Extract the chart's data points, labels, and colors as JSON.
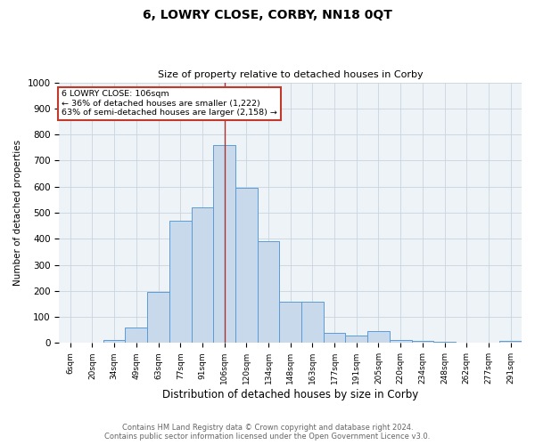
{
  "title": "6, LOWRY CLOSE, CORBY, NN18 0QT",
  "subtitle": "Size of property relative to detached houses in Corby",
  "xlabel": "Distribution of detached houses by size in Corby",
  "ylabel": "Number of detached properties",
  "categories": [
    "6sqm",
    "20sqm",
    "34sqm",
    "49sqm",
    "63sqm",
    "77sqm",
    "91sqm",
    "106sqm",
    "120sqm",
    "134sqm",
    "148sqm",
    "163sqm",
    "177sqm",
    "191sqm",
    "205sqm",
    "220sqm",
    "234sqm",
    "248sqm",
    "262sqm",
    "277sqm",
    "291sqm"
  ],
  "values": [
    0,
    0,
    12,
    60,
    195,
    470,
    520,
    760,
    595,
    390,
    160,
    160,
    40,
    30,
    45,
    10,
    8,
    3,
    2,
    2,
    7
  ],
  "bar_color": "#c9d9ec",
  "bar_edge_color": "#5b9bd5",
  "vline_x": 7,
  "vline_color": "#a83232",
  "annotation_title": "6 LOWRY CLOSE: 106sqm",
  "annotation_line1": "← 36% of detached houses are smaller (1,222)",
  "annotation_line2": "63% of semi-detached houses are larger (2,158) →",
  "annotation_box_color": "#c0392b",
  "ylim": [
    0,
    1000
  ],
  "yticks": [
    0,
    100,
    200,
    300,
    400,
    500,
    600,
    700,
    800,
    900,
    1000
  ],
  "footer_line1": "Contains HM Land Registry data © Crown copyright and database right 2024.",
  "footer_line2": "Contains public sector information licensed under the Open Government Licence v3.0.",
  "background_color": "#eef3f8",
  "plot_background": "#ffffff",
  "grid_color": "#c8d4e0"
}
